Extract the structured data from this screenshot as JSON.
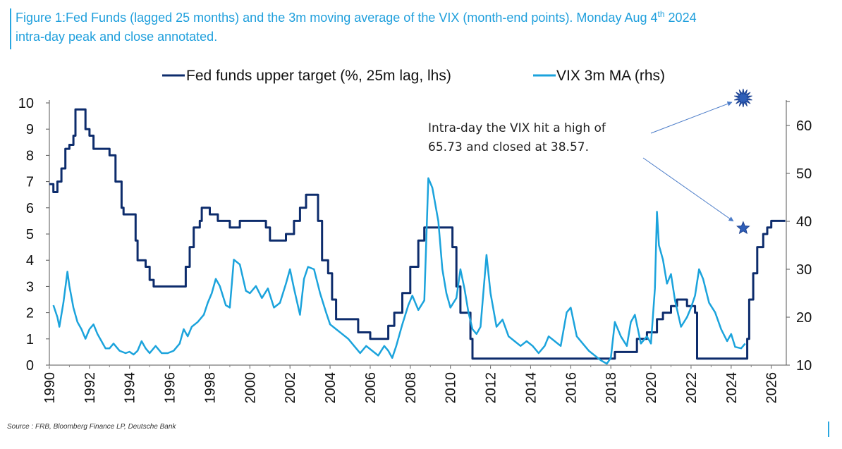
{
  "figure": {
    "title_line1": "Figure 1:Fed Funds (lagged 25 months) and the 3m moving average of the VIX (month-end points). Monday Aug 4",
    "title_sup": "th",
    "title_line1_end": " 2024",
    "title_line2": "intra-day peak and close annotated.",
    "source": "Source : FRB, Bloomberg Finance LP, Deutsche Bank"
  },
  "annotation": {
    "line1": "Intra-day the VIX hit a high of",
    "line2": "65.73 and closed at 38.57."
  },
  "colors": {
    "fed": "#0d2c6c",
    "vix": "#1ba3dc",
    "title": "#1f9fdc",
    "star": "#2f5fb8"
  },
  "chart_data": {
    "type": "line",
    "legend": [
      "Fed funds upper target (%, 25m lag, lhs)",
      "VIX 3m MA (rhs)"
    ],
    "legend_placement": "top",
    "x_ticks": [
      "1990",
      "1992",
      "1994",
      "1996",
      "1998",
      "2000",
      "2002",
      "2004",
      "2006",
      "2008",
      "2010",
      "2012",
      "2014",
      "2016",
      "2018",
      "2020",
      "2022",
      "2024",
      "2026"
    ],
    "y_left": {
      "ticks": [
        "0",
        "1",
        "2",
        "3",
        "4",
        "5",
        "6",
        "7",
        "8",
        "9",
        "10"
      ],
      "range": [
        0,
        10
      ]
    },
    "y_right": {
      "ticks": [
        "10",
        "20",
        "30",
        "40",
        "50",
        "60"
      ],
      "range": [
        10,
        65
      ]
    },
    "grid": false,
    "series": [
      {
        "name": "Fed funds upper target (%, 25m lag, lhs)",
        "axis": "left",
        "points": [
          [
            1990.0,
            6.9
          ],
          [
            1990.2,
            6.6
          ],
          [
            1990.4,
            7.0
          ],
          [
            1990.6,
            7.5
          ],
          [
            1990.8,
            8.25
          ],
          [
            1991.0,
            8.4
          ],
          [
            1991.2,
            8.75
          ],
          [
            1991.3,
            9.75
          ],
          [
            1991.7,
            9.75
          ],
          [
            1991.8,
            9.0
          ],
          [
            1992.0,
            8.75
          ],
          [
            1992.2,
            8.25
          ],
          [
            1992.9,
            8.25
          ],
          [
            1993.0,
            8.0
          ],
          [
            1993.3,
            7.0
          ],
          [
            1993.6,
            6.0
          ],
          [
            1993.7,
            5.75
          ],
          [
            1994.0,
            5.75
          ],
          [
            1994.3,
            4.75
          ],
          [
            1994.4,
            4.0
          ],
          [
            1994.8,
            3.75
          ],
          [
            1995.0,
            3.25
          ],
          [
            1995.2,
            3.0
          ],
          [
            1996.6,
            3.0
          ],
          [
            1996.8,
            3.75
          ],
          [
            1997.0,
            4.5
          ],
          [
            1997.2,
            5.25
          ],
          [
            1997.5,
            5.5
          ],
          [
            1997.6,
            6.0
          ],
          [
            1997.9,
            6.0
          ],
          [
            1998.0,
            5.75
          ],
          [
            1998.4,
            5.5
          ],
          [
            1999.0,
            5.25
          ],
          [
            1999.4,
            5.25
          ],
          [
            1999.5,
            5.5
          ],
          [
            2000.5,
            5.5
          ],
          [
            2000.8,
            5.25
          ],
          [
            2001.0,
            4.75
          ],
          [
            2001.6,
            4.75
          ],
          [
            2001.8,
            5.0
          ],
          [
            2002.2,
            5.5
          ],
          [
            2002.5,
            6.0
          ],
          [
            2002.8,
            6.5
          ],
          [
            2003.3,
            6.5
          ],
          [
            2003.4,
            5.5
          ],
          [
            2003.6,
            4.0
          ],
          [
            2003.9,
            3.5
          ],
          [
            2004.1,
            2.5
          ],
          [
            2004.3,
            1.75
          ],
          [
            2005.1,
            1.75
          ],
          [
            2005.4,
            1.25
          ],
          [
            2006.0,
            1.0
          ],
          [
            2006.7,
            1.0
          ],
          [
            2006.9,
            1.5
          ],
          [
            2007.2,
            2.0
          ],
          [
            2007.6,
            2.75
          ],
          [
            2008.0,
            3.75
          ],
          [
            2008.4,
            4.75
          ],
          [
            2008.7,
            5.25
          ],
          [
            2009.9,
            5.25
          ],
          [
            2010.1,
            4.5
          ],
          [
            2010.3,
            3.0
          ],
          [
            2010.5,
            2.0
          ],
          [
            2010.8,
            2.0
          ],
          [
            2011.0,
            1.0
          ],
          [
            2011.1,
            0.25
          ],
          [
            2018.0,
            0.25
          ],
          [
            2018.2,
            0.5
          ],
          [
            2019.0,
            0.5
          ],
          [
            2019.3,
            1.0
          ],
          [
            2019.8,
            1.25
          ],
          [
            2020.3,
            1.75
          ],
          [
            2020.6,
            2.0
          ],
          [
            2021.0,
            2.25
          ],
          [
            2021.3,
            2.5
          ],
          [
            2021.8,
            2.25
          ],
          [
            2022.2,
            2.0
          ],
          [
            2022.3,
            0.25
          ],
          [
            2024.5,
            0.25
          ],
          [
            2024.8,
            1.0
          ],
          [
            2024.9,
            2.5
          ],
          [
            2025.1,
            3.5
          ],
          [
            2025.3,
            4.5
          ],
          [
            2025.6,
            5.0
          ],
          [
            2025.8,
            5.25
          ],
          [
            2026.0,
            5.5
          ],
          [
            2026.7,
            5.5
          ]
        ]
      },
      {
        "name": "VIX 3m MA (rhs)",
        "axis": "right",
        "points": [
          [
            1990.2,
            22.5
          ],
          [
            1990.4,
            20
          ],
          [
            1990.5,
            18
          ],
          [
            1990.7,
            23
          ],
          [
            1990.9,
            29.5
          ],
          [
            1991.0,
            26.5
          ],
          [
            1991.2,
            22
          ],
          [
            1991.4,
            19
          ],
          [
            1991.6,
            17.5
          ],
          [
            1991.8,
            15.5
          ],
          [
            1992.0,
            17.5
          ],
          [
            1992.2,
            18.5
          ],
          [
            1992.4,
            16.5
          ],
          [
            1992.6,
            15
          ],
          [
            1992.8,
            13.5
          ],
          [
            1993.0,
            13.5
          ],
          [
            1993.2,
            14.5
          ],
          [
            1993.5,
            13
          ],
          [
            1993.8,
            12.5
          ],
          [
            1994.0,
            12.8
          ],
          [
            1994.2,
            12.2
          ],
          [
            1994.4,
            13
          ],
          [
            1994.6,
            15
          ],
          [
            1994.8,
            13.5
          ],
          [
            1995.0,
            12.5
          ],
          [
            1995.3,
            14
          ],
          [
            1995.6,
            12.5
          ],
          [
            1995.9,
            12.5
          ],
          [
            1996.2,
            13
          ],
          [
            1996.5,
            14.5
          ],
          [
            1996.7,
            17.5
          ],
          [
            1996.9,
            16
          ],
          [
            1997.1,
            18
          ],
          [
            1997.4,
            19
          ],
          [
            1997.7,
            20.5
          ],
          [
            1997.9,
            23
          ],
          [
            1998.1,
            25
          ],
          [
            1998.3,
            28
          ],
          [
            1998.5,
            26.5
          ],
          [
            1998.8,
            22.5
          ],
          [
            1999.0,
            22
          ],
          [
            1999.2,
            32
          ],
          [
            1999.5,
            31
          ],
          [
            1999.8,
            25.5
          ],
          [
            2000.0,
            25
          ],
          [
            2000.3,
            26.5
          ],
          [
            2000.6,
            24
          ],
          [
            2000.9,
            26
          ],
          [
            2001.2,
            22
          ],
          [
            2001.5,
            23
          ],
          [
            2001.8,
            27
          ],
          [
            2002.0,
            30
          ],
          [
            2002.2,
            26
          ],
          [
            2002.5,
            20.5
          ],
          [
            2002.7,
            28
          ],
          [
            2002.9,
            30.5
          ],
          [
            2003.2,
            30
          ],
          [
            2003.5,
            25
          ],
          [
            2003.8,
            21
          ],
          [
            2004.0,
            18.5
          ],
          [
            2004.3,
            17.5
          ],
          [
            2004.6,
            16.5
          ],
          [
            2004.9,
            15.5
          ],
          [
            2005.2,
            14
          ],
          [
            2005.5,
            12.5
          ],
          [
            2005.8,
            14
          ],
          [
            2006.1,
            13
          ],
          [
            2006.4,
            12
          ],
          [
            2006.7,
            14
          ],
          [
            2006.9,
            13
          ],
          [
            2007.1,
            11.5
          ],
          [
            2007.3,
            14
          ],
          [
            2007.6,
            18.5
          ],
          [
            2007.9,
            22.5
          ],
          [
            2008.1,
            24.5
          ],
          [
            2008.4,
            21.5
          ],
          [
            2008.7,
            23.5
          ],
          [
            2008.9,
            49
          ],
          [
            2009.1,
            47
          ],
          [
            2009.4,
            40
          ],
          [
            2009.6,
            30
          ],
          [
            2009.8,
            25
          ],
          [
            2010.0,
            22
          ],
          [
            2010.3,
            24
          ],
          [
            2010.5,
            30
          ],
          [
            2010.7,
            26
          ],
          [
            2010.9,
            21
          ],
          [
            2011.1,
            17.5
          ],
          [
            2011.3,
            16.5
          ],
          [
            2011.5,
            18
          ],
          [
            2011.8,
            33
          ],
          [
            2012.0,
            25
          ],
          [
            2012.3,
            18
          ],
          [
            2012.6,
            19.5
          ],
          [
            2012.9,
            16
          ],
          [
            2013.2,
            15
          ],
          [
            2013.5,
            14
          ],
          [
            2013.8,
            15
          ],
          [
            2014.1,
            14
          ],
          [
            2014.4,
            12.5
          ],
          [
            2014.7,
            14
          ],
          [
            2014.9,
            16
          ],
          [
            2015.2,
            15
          ],
          [
            2015.5,
            14
          ],
          [
            2015.8,
            21
          ],
          [
            2016.0,
            22
          ],
          [
            2016.3,
            16
          ],
          [
            2016.6,
            14.5
          ],
          [
            2016.9,
            13
          ],
          [
            2017.2,
            12
          ],
          [
            2017.5,
            11
          ],
          [
            2017.8,
            10.3
          ],
          [
            2018.0,
            11.5
          ],
          [
            2018.2,
            19
          ],
          [
            2018.5,
            16
          ],
          [
            2018.8,
            14
          ],
          [
            2019.0,
            19
          ],
          [
            2019.2,
            20.5
          ],
          [
            2019.5,
            14.5
          ],
          [
            2019.8,
            16
          ],
          [
            2020.0,
            14.5
          ],
          [
            2020.2,
            26
          ],
          [
            2020.3,
            42
          ],
          [
            2020.4,
            35
          ],
          [
            2020.6,
            32
          ],
          [
            2020.8,
            27
          ],
          [
            2021.0,
            29
          ],
          [
            2021.2,
            23.5
          ],
          [
            2021.5,
            18
          ],
          [
            2021.8,
            20
          ],
          [
            2022.0,
            22
          ],
          [
            2022.2,
            24.5
          ],
          [
            2022.4,
            30
          ],
          [
            2022.6,
            28
          ],
          [
            2022.9,
            23
          ],
          [
            2023.2,
            21
          ],
          [
            2023.5,
            17.5
          ],
          [
            2023.8,
            15
          ],
          [
            2024.0,
            16.5
          ],
          [
            2024.2,
            13.8
          ],
          [
            2024.5,
            13.5
          ],
          [
            2024.7,
            14.5
          ]
        ]
      }
    ],
    "markers": [
      {
        "label": "Intra-day high",
        "x": 2024.6,
        "y_right": 65.73
      },
      {
        "label": "Close",
        "x": 2024.6,
        "y_right": 38.57
      }
    ]
  }
}
